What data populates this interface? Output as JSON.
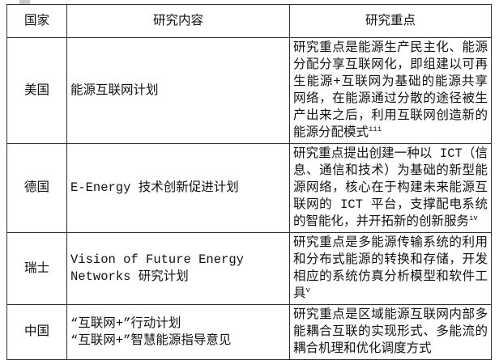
{
  "theme": {
    "border_color": "#2e2e2e",
    "text_color": "#111111",
    "page_bg": "#ffffff",
    "artifact_color": "#c9c9c9"
  },
  "table": {
    "header": {
      "country": "国家",
      "content": "研究内容",
      "focus": "研究重点"
    },
    "rows": [
      {
        "country": "美国",
        "content": "能源互联网计划",
        "focus": "研究重点是能源生产民主化、能源分配分享互联网化，即组建以可再生能源+互联网为基础的能源共享网络，在能源通过分散的途径被生产出来之后，利用互联网创造新的能源分配模式",
        "ref": "iii"
      },
      {
        "country": "德国",
        "content": "E-Energy 技术创新促进计划",
        "focus": "研究重点提出创建一种以 ICT（信息、通信和技术）为基础的新型能源网络，核心在于构建未来能源互联网的 ICT 平台，支撑配电系统的智能化，并开拓新的创新服务",
        "ref": "iv"
      },
      {
        "country": "瑞士",
        "content": "Vision of Future Energy Networks 研究计划",
        "focus": "研究重点是多能源传输系统的利用和分布式能源的转换和存储，开发相应的系统仿真分析模型和软件工具",
        "ref": "v"
      },
      {
        "country": "中国",
        "content": "“互联网+”行动计划\n“互联网+”智慧能源指导意见",
        "focus": "研究重点是区域能源互联网内部多能耦合互联的实现形式、多能流的耦合机理和优化调度方式",
        "ref": ""
      }
    ]
  }
}
